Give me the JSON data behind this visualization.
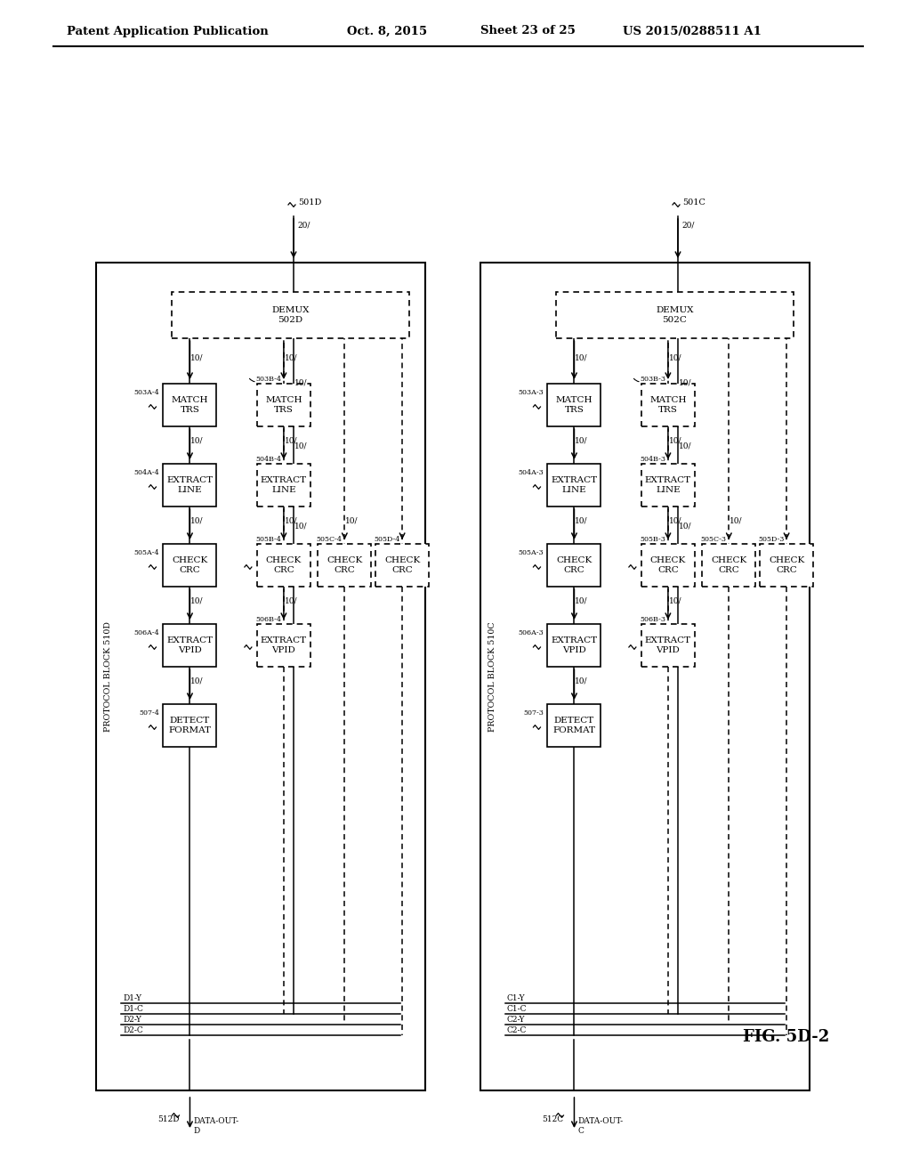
{
  "bg_color": "#ffffff",
  "header_left": "Patent Application Publication",
  "header_date": "Oct. 8, 2015",
  "header_sheet": "Sheet 23 of 25",
  "header_patent": "US 2015/0288511 A1",
  "fig_label": "FIG. 5D-2"
}
